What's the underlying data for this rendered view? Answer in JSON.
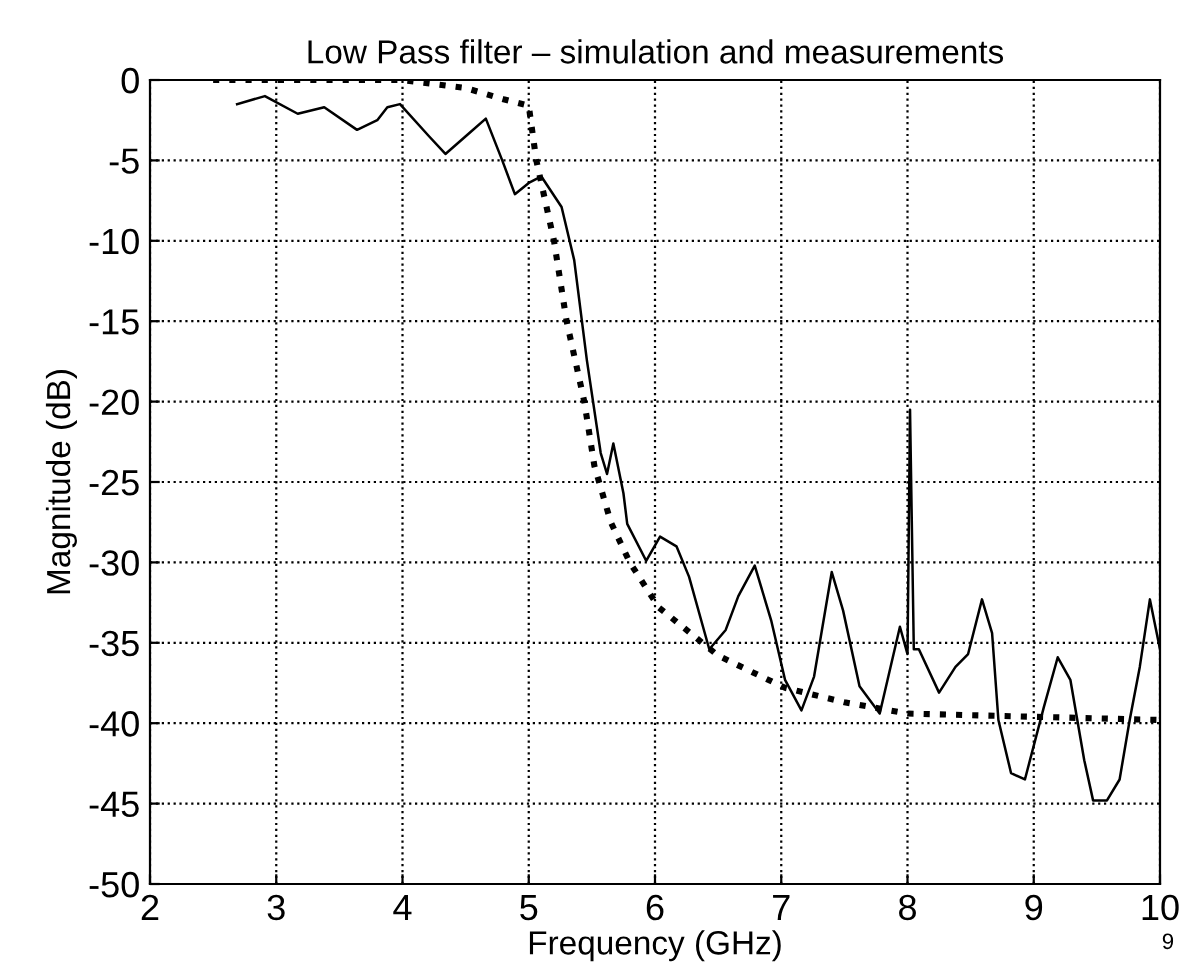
{
  "chart_data": {
    "type": "line",
    "title": "Low Pass filter – simulation and measurements",
    "xlabel": "Frequency (GHz)",
    "ylabel": "Magnitude (dB)",
    "xlim": [
      2,
      10
    ],
    "xticks": [
      2,
      3,
      4,
      5,
      6,
      7,
      8,
      9,
      10
    ],
    "ylim": [
      -50,
      0
    ],
    "yticks": [
      -50,
      -45,
      -40,
      -35,
      -30,
      -25,
      -20,
      -15,
      -10,
      -5,
      0
    ],
    "grid": true,
    "annotations": [
      "9"
    ],
    "series": [
      {
        "color": "#000000",
        "line_style": "solid",
        "x": [
          2.69,
          2.91,
          3.17,
          3.38,
          3.64,
          3.8,
          3.88,
          3.98,
          4.21,
          4.34,
          4.53,
          4.66,
          4.79,
          4.89,
          5.0,
          5.1,
          5.26,
          5.36,
          5.46,
          5.57,
          5.62,
          5.67,
          5.75,
          5.78,
          5.93,
          6.04,
          6.17,
          6.27,
          6.43,
          6.56,
          6.66,
          6.79,
          6.92,
          7.03,
          7.16,
          7.26,
          7.4,
          7.49,
          7.62,
          7.78,
          7.94,
          8.0,
          8.02,
          8.05,
          8.09,
          8.25,
          8.38,
          8.48,
          8.59,
          8.67,
          8.72,
          8.82,
          8.93,
          9.08,
          9.19,
          9.29,
          9.4,
          9.47,
          9.58,
          9.68,
          9.76,
          9.84,
          9.92,
          10.0
        ],
        "values": [
          -1.5,
          -1.0,
          -2.1,
          -1.7,
          -3.1,
          -2.5,
          -1.7,
          -1.5,
          -3.5,
          -4.6,
          -3.3,
          -2.4,
          -5.0,
          -7.1,
          -6.4,
          -6.0,
          -7.9,
          -11.2,
          -17.4,
          -23.2,
          -24.5,
          -22.6,
          -25.7,
          -27.6,
          -29.9,
          -28.4,
          -29.0,
          -30.9,
          -35.4,
          -34.2,
          -32.1,
          -30.2,
          -33.6,
          -37.3,
          -39.2,
          -37.1,
          -30.6,
          -33.0,
          -37.7,
          -39.4,
          -34.0,
          -35.7,
          -20.5,
          -35.4,
          -35.4,
          -38.1,
          -36.5,
          -35.7,
          -32.3,
          -34.4,
          -39.8,
          -43.1,
          -43.5,
          -39.0,
          -35.9,
          -37.3,
          -42.3,
          -44.8,
          -44.8,
          -43.5,
          -39.8,
          -36.5,
          -32.3,
          -35.4
        ]
      },
      {
        "color": "#000000",
        "line_style": "dotted",
        "x": [
          2.5,
          4.0,
          4.5,
          4.8,
          5.0,
          5.06,
          5.2,
          5.3,
          5.44,
          5.52,
          5.65,
          5.8,
          6.03,
          6.5,
          7.03,
          7.5,
          8.0,
          9.0,
          10.0
        ],
        "values": [
          0,
          0,
          -0.5,
          -1.2,
          -1.6,
          -5.0,
          -10.0,
          -15.0,
          -20.0,
          -24.0,
          -27.5,
          -30.0,
          -32.8,
          -35.8,
          -37.8,
          -38.7,
          -39.4,
          -39.6,
          -39.8
        ]
      }
    ]
  }
}
